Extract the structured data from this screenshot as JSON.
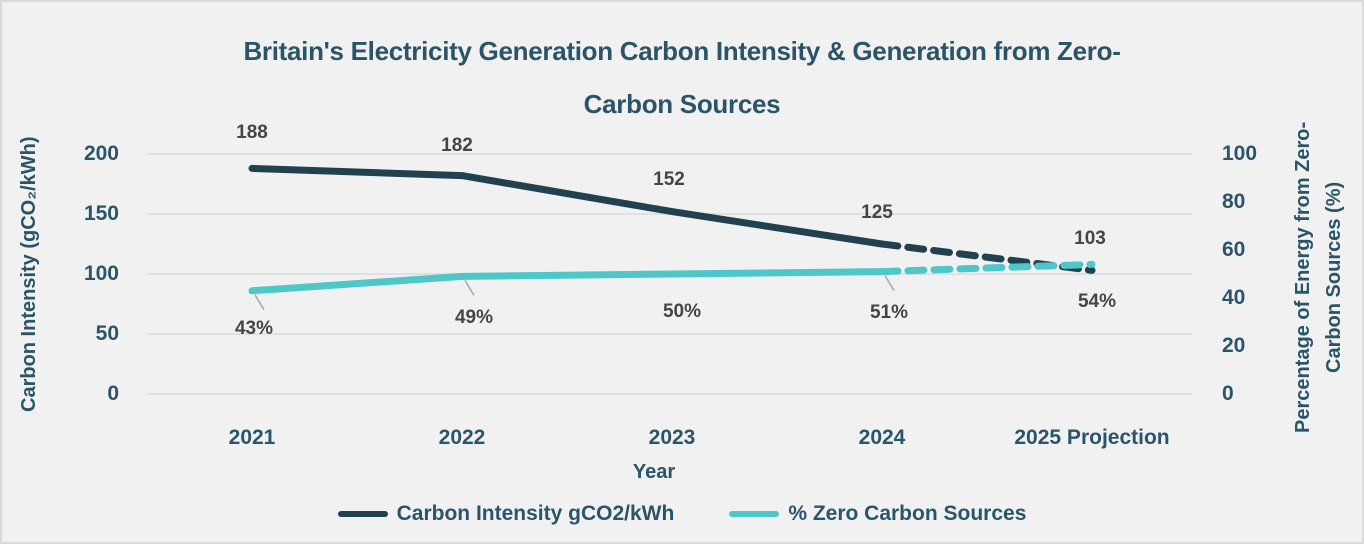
{
  "colors": {
    "background": "#f1f1f2",
    "frame_border": "#d9d9d9",
    "heading_text": "#2a5568",
    "gridline": "#dadadc",
    "data_label_text": "#454545",
    "leader_line": "#a9a9a9",
    "carbon_intensity_line": "#22414f",
    "zero_carbon_line": "#4fc6c7"
  },
  "chart_data": {
    "type": "line",
    "title": "Britain's Electricity Generation Carbon Intensity & Generation from Zero-Carbon Sources",
    "title_lines": [
      "Britain's Electricity Generation Carbon Intensity & Generation from Zero-",
      "Carbon Sources"
    ],
    "categories": [
      "2021",
      "2022",
      "2023",
      "2024",
      "2025 Projection"
    ],
    "xlabel": "Year",
    "grid": "horizontal",
    "legend_position": "bottom",
    "axes": {
      "left": {
        "label": "Carbon Intensity (gCO₂/kWh)",
        "ticks": [
          "200",
          "150",
          "100",
          "50",
          "0"
        ],
        "range": [
          0,
          200
        ]
      },
      "right": {
        "label": "Percentage of Energy from Zero-Carbon Sources (%)",
        "label_lines": [
          "Percentage of Energy from Zero-",
          "Carbon Sources (%)"
        ],
        "ticks": [
          "100",
          "80",
          "60",
          "40",
          "20",
          "0"
        ],
        "range": [
          0,
          100
        ]
      }
    },
    "series": [
      {
        "name": "Carbon Intensity gCO2/kWh",
        "axis": "left",
        "style": "solid_then_dashed",
        "dashed_from": "2024",
        "values": [
          188,
          182,
          152,
          125,
          103
        ],
        "labels": [
          "188",
          "182",
          "152",
          "125",
          "103"
        ]
      },
      {
        "name": "% Zero Carbon Sources",
        "axis": "right",
        "style": "solid_then_dashed",
        "dashed_from": "2024",
        "values": [
          43,
          49,
          50,
          51,
          54
        ],
        "labels": [
          "43%",
          "49%",
          "50%",
          "51%",
          "54%"
        ]
      }
    ]
  }
}
